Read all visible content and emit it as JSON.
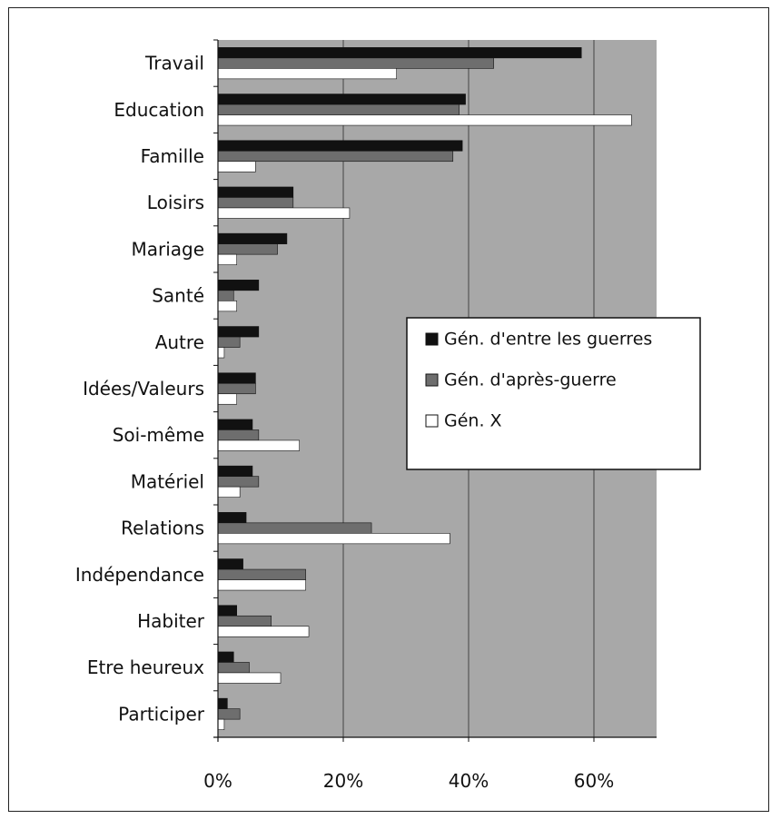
{
  "chart_data": {
    "type": "bar",
    "orientation": "horizontal",
    "title": "",
    "xlabel": "",
    "ylabel": "",
    "xlim": [
      0,
      70
    ],
    "x_ticks": [
      {
        "value": 0,
        "label": "0%"
      },
      {
        "value": 20,
        "label": "20%"
      },
      {
        "value": 40,
        "label": "40%"
      },
      {
        "value": 60,
        "label": "60%"
      }
    ],
    "grid": true,
    "legend_position": "right",
    "categories": [
      "Travail",
      "Education",
      "Famille",
      "Loisirs",
      "Mariage",
      "Santé",
      "Autre",
      "Idées/Valeurs",
      "Soi-même",
      "Matériel",
      "Relations",
      "Indépendance",
      "Habiter",
      "Etre heureux",
      "Participer"
    ],
    "series": [
      {
        "name": "Gén. d'entre les guerres",
        "color": "#111111",
        "values": [
          58,
          39.5,
          39,
          12,
          11,
          6.5,
          6.5,
          6,
          5.5,
          5.5,
          4.5,
          4,
          3,
          2.5,
          1.5
        ]
      },
      {
        "name": "Gén. d'après-guerre",
        "color": "#6e6e6e",
        "values": [
          44,
          38.5,
          37.5,
          12,
          9.5,
          2.5,
          3.5,
          6,
          6.5,
          6.5,
          24.5,
          14,
          8.5,
          5,
          3.5
        ]
      },
      {
        "name": "Gén. X",
        "color": "#ffffff",
        "values": [
          28.5,
          66,
          6,
          21,
          3,
          3,
          1,
          3,
          13,
          3.5,
          37,
          14,
          14.5,
          10,
          1
        ]
      }
    ]
  }
}
